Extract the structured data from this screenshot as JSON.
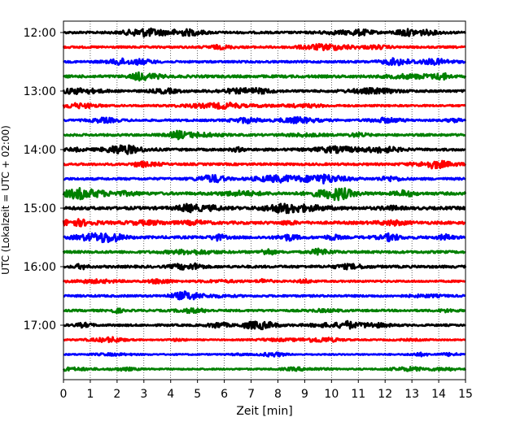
{
  "chart_data": {
    "type": "line",
    "title": "",
    "xlabel": "Zeit  [min]",
    "ylabel": "UTC (Lokalzeit = UTC + 02:00)",
    "xlim": [
      0,
      15
    ],
    "x_ticks": [
      0,
      1,
      2,
      3,
      4,
      5,
      6,
      7,
      8,
      9,
      10,
      11,
      12,
      13,
      14,
      15
    ],
    "y_tick_labels": [
      "12:00",
      "13:00",
      "14:00",
      "15:00",
      "16:00",
      "17:00"
    ],
    "grid": "vertical dotted at each minute",
    "trace_interval_minutes": 15,
    "trace_color_cycle": [
      "#000000",
      "#ff0000",
      "#0000ff",
      "#008000"
    ],
    "series": [
      {
        "start": "12:00",
        "color": "#000000",
        "amplitude": 0.55
      },
      {
        "start": "12:15",
        "color": "#ff0000",
        "amplitude": 0.5
      },
      {
        "start": "12:30",
        "color": "#0000ff",
        "amplitude": 0.5
      },
      {
        "start": "12:45",
        "color": "#008000",
        "amplitude": 0.65
      },
      {
        "start": "13:00",
        "color": "#000000",
        "amplitude": 0.55
      },
      {
        "start": "13:15",
        "color": "#ff0000",
        "amplitude": 0.45
      },
      {
        "start": "13:30",
        "color": "#0000ff",
        "amplitude": 0.5
      },
      {
        "start": "13:45",
        "color": "#008000",
        "amplitude": 0.55
      },
      {
        "start": "14:00",
        "color": "#000000",
        "amplitude": 0.6
      },
      {
        "start": "14:15",
        "color": "#ff0000",
        "amplitude": 0.55
      },
      {
        "start": "14:30",
        "color": "#0000ff",
        "amplitude": 0.55
      },
      {
        "start": "14:45",
        "color": "#008000",
        "amplitude": 0.7
      },
      {
        "start": "15:00",
        "color": "#000000",
        "amplitude": 0.75
      },
      {
        "start": "15:15",
        "color": "#ff0000",
        "amplitude": 0.7
      },
      {
        "start": "15:30",
        "color": "#0000ff",
        "amplitude": 0.65
      },
      {
        "start": "15:45",
        "color": "#008000",
        "amplitude": 0.6
      },
      {
        "start": "16:00",
        "color": "#000000",
        "amplitude": 0.6
      },
      {
        "start": "16:15",
        "color": "#ff0000",
        "amplitude": 0.45
      },
      {
        "start": "16:30",
        "color": "#0000ff",
        "amplitude": 0.5
      },
      {
        "start": "16:45",
        "color": "#008000",
        "amplitude": 0.5
      },
      {
        "start": "17:00",
        "color": "#000000",
        "amplitude": 0.5
      },
      {
        "start": "17:15",
        "color": "#ff0000",
        "amplitude": 0.3
      },
      {
        "start": "17:30",
        "color": "#0000ff",
        "amplitude": 0.3
      },
      {
        "start": "17:45",
        "color": "#008000",
        "amplitude": 0.35
      }
    ]
  }
}
